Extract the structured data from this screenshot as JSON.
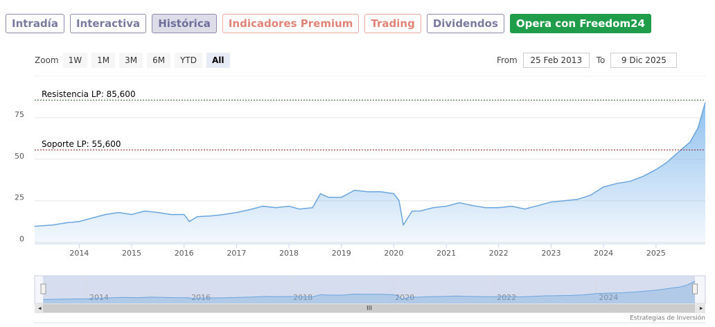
{
  "tabs": [
    "Intradía",
    "Interactiva",
    "Histórica",
    "Indicadores Premium",
    "Trading",
    "Dividendos",
    "Opera con Freedom24"
  ],
  "zoom": {
    "label": "Zoom",
    "buttons": [
      "1W",
      "1M",
      "3M",
      "6M",
      "YTD",
      "All"
    ]
  },
  "range": {
    "from_label": "From",
    "from": "25 Feb 2013",
    "to_label": "To",
    "to": "9 Dic 2025"
  },
  "credits": "Estrategias de Inversión",
  "chart_data": {
    "type": "area",
    "x": [
      2013.15,
      2013.5,
      2013.75,
      2014.0,
      2014.25,
      2014.5,
      2014.75,
      2015.0,
      2015.25,
      2015.5,
      2015.75,
      2016.0,
      2016.1,
      2016.25,
      2016.5,
      2016.75,
      2017.0,
      2017.25,
      2017.5,
      2017.75,
      2018.0,
      2018.2,
      2018.45,
      2018.6,
      2018.75,
      2019.0,
      2019.25,
      2019.5,
      2019.75,
      2020.0,
      2020.1,
      2020.18,
      2020.35,
      2020.5,
      2020.75,
      2021.0,
      2021.25,
      2021.5,
      2021.75,
      2022.0,
      2022.25,
      2022.5,
      2022.75,
      2023.0,
      2023.25,
      2023.5,
      2023.75,
      2024.0,
      2024.25,
      2024.5,
      2024.75,
      2025.0,
      2025.2,
      2025.35,
      2025.5,
      2025.65,
      2025.8,
      2025.94
    ],
    "values": [
      9.6,
      10.4,
      11.7,
      12.5,
      14.6,
      16.7,
      17.9,
      16.7,
      18.8,
      17.9,
      16.7,
      16.7,
      12.5,
      15.4,
      15.8,
      16.7,
      17.9,
      19.6,
      21.7,
      20.8,
      21.7,
      20,
      20.8,
      29.2,
      27.1,
      27.1,
      31.3,
      30.4,
      30.4,
      29.2,
      25,
      10.4,
      18.8,
      18.8,
      20.8,
      21.7,
      23.8,
      22.1,
      20.8,
      20.8,
      21.7,
      20,
      22.1,
      24.2,
      25,
      25.8,
      28.3,
      33.3,
      35.4,
      36.7,
      39.6,
      43.8,
      47.9,
      52.1,
      56.3,
      60.4,
      68.8,
      84.2
    ],
    "color": "#6aa5dd",
    "xlim": [
      2013.15,
      2025.94
    ],
    "xticks": [
      2014,
      2015,
      2016,
      2017,
      2018,
      2019,
      2020,
      2021,
      2022,
      2023,
      2024,
      2025
    ],
    "ylim": [
      -1,
      100
    ],
    "yticks": [
      0,
      25,
      50,
      75
    ],
    "grid": true,
    "plot_lines": [
      {
        "value": 85.6,
        "label": "Resistencia LP: 85,600",
        "color": "#2e5e2e"
      },
      {
        "value": 55.6,
        "label": "Soporte LP: 55,600",
        "color": "#8b1a1a"
      }
    ],
    "navigator_xticks": [
      2014,
      2016,
      2018,
      2020,
      2022,
      2024
    ]
  }
}
